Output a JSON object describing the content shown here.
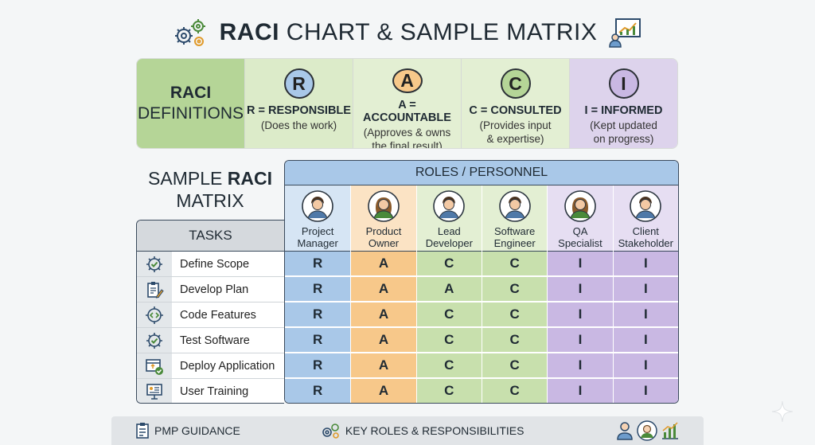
{
  "title": {
    "bold": "RACI",
    "rest": " CHART & SAMPLE MATRIX"
  },
  "definitions": {
    "heading_line1": "RACI",
    "heading_line2": "DEFINITIONS",
    "items": [
      {
        "letter": "R",
        "name": "R = RESPONSIBLE",
        "desc1": "(Does the work)",
        "desc2": "",
        "color": "#dcebc9",
        "circle": "#a9c8e8"
      },
      {
        "letter": "A",
        "name": "A = ACCOUNTABLE",
        "desc1": "(Approves & owns",
        "desc2": "the final result)",
        "color": "#e3efd3",
        "circle": "#f7c88a"
      },
      {
        "letter": "C",
        "name": "C = CONSULTED",
        "desc1": "(Provides input",
        "desc2": "& expertise)",
        "color": "#e3efd3",
        "circle": "#b5d597"
      },
      {
        "letter": "I",
        "name": "I = INFORMED",
        "desc1": "(Kept updated",
        "desc2": "on progress)",
        "color": "#ddd3ec",
        "circle": "#c9b8e3"
      }
    ]
  },
  "matrix_title": {
    "line1_pre": "SAMPLE ",
    "line1_bold": "RACI",
    "line2": "MATRIX"
  },
  "roles_header": "ROLES / PERSONNEL",
  "tasks_header": "TASKS",
  "roles": [
    {
      "line1": "Project",
      "line2": "Manager",
      "bg": "#d6e5f4",
      "cell": "#a9c8e8",
      "avatar": "male"
    },
    {
      "line1": "Product",
      "line2": "Owner",
      "bg": "#fbe3c4",
      "cell": "#f7c88a",
      "avatar": "female"
    },
    {
      "line1": "Lead",
      "line2": "Developer",
      "bg": "#e3efd3",
      "cell": "#c8e0ad",
      "avatar": "male"
    },
    {
      "line1": "Software",
      "line2": "Engineer",
      "bg": "#e3efd3",
      "cell": "#c8e0ad",
      "avatar": "male"
    },
    {
      "line1": "QA",
      "line2": "Specialist",
      "bg": "#e6def2",
      "cell": "#c9b8e3",
      "avatar": "female"
    },
    {
      "line1": "Client",
      "line2": "Stakeholder",
      "bg": "#e6def2",
      "cell": "#c9b8e3",
      "avatar": "male"
    }
  ],
  "tasks": [
    {
      "label": "Define Scope",
      "icon": "gear-check-icon",
      "values": [
        "R",
        "A",
        "C",
        "C",
        "I",
        "I"
      ]
    },
    {
      "label": "Develop Plan",
      "icon": "clipboard-pen-icon",
      "values": [
        "R",
        "A",
        "A",
        "C",
        "I",
        "I"
      ]
    },
    {
      "label": "Code Features",
      "icon": "code-gear-icon",
      "values": [
        "R",
        "A",
        "C",
        "C",
        "I",
        "I"
      ]
    },
    {
      "label": "Test Software",
      "icon": "gear-check-icon",
      "values": [
        "R",
        "A",
        "C",
        "C",
        "I",
        "I"
      ]
    },
    {
      "label": "Deploy Application",
      "icon": "deploy-window-icon",
      "values": [
        "R",
        "A",
        "C",
        "C",
        "I",
        "I"
      ]
    },
    {
      "label": "User Training",
      "icon": "presentation-icon",
      "values": [
        "R",
        "A",
        "C",
        "C",
        "I",
        "I"
      ]
    }
  ],
  "footer": {
    "left": "PMP GUIDANCE",
    "center": "KEY ROLES & RESPONSIBILITIES"
  }
}
